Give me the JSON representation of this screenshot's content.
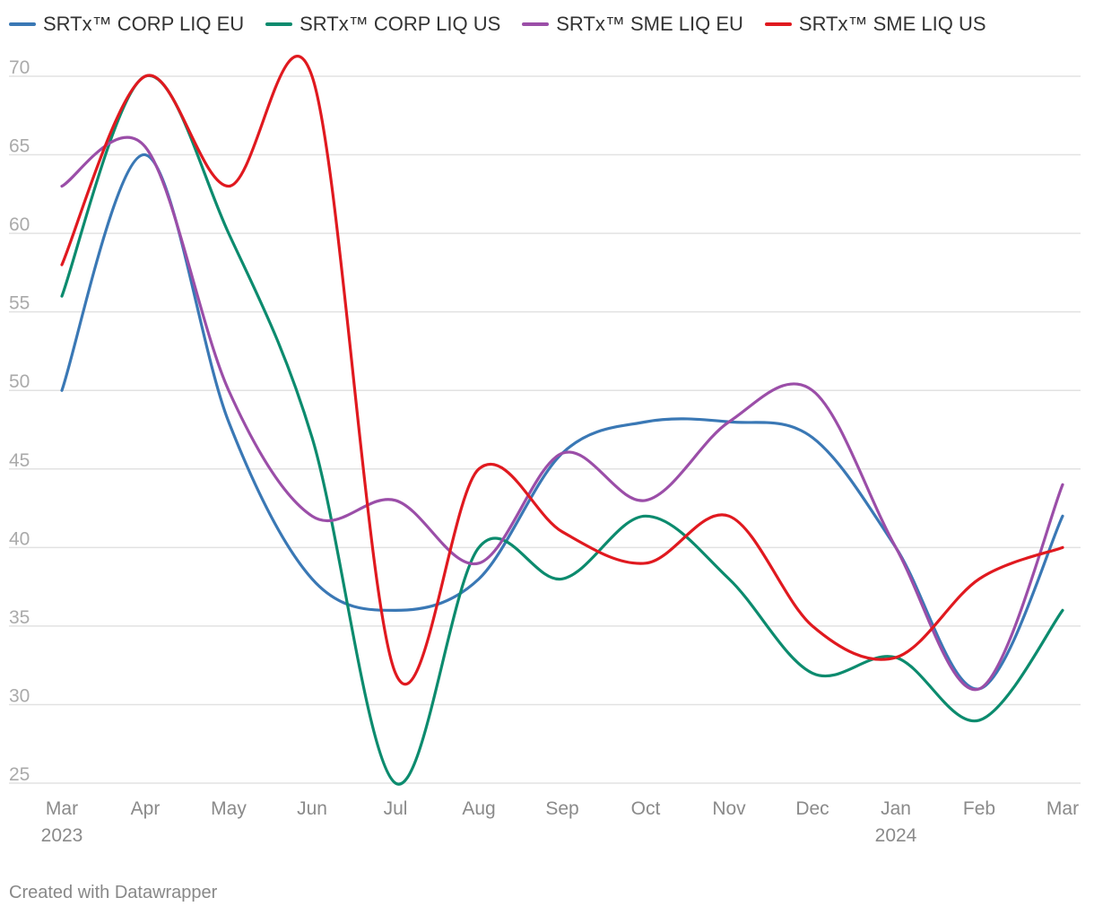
{
  "footer": {
    "credit": "Created with Datawrapper"
  },
  "chart_data": {
    "type": "line",
    "title": "",
    "xlabel": "",
    "ylabel": "",
    "ylim": [
      25,
      70
    ],
    "y_ticks": [
      25,
      30,
      35,
      40,
      45,
      50,
      55,
      60,
      65,
      70
    ],
    "grid": true,
    "legend_position": "top-left",
    "categories": [
      "Mar 2023",
      "Apr 2023",
      "May 2023",
      "Jun 2023",
      "Jul 2023",
      "Aug 2023",
      "Sep 2023",
      "Oct 2023",
      "Nov 2023",
      "Dec 2023",
      "Jan 2024",
      "Feb 2024",
      "Mar 2024"
    ],
    "x_tick_labels": [
      "Mar",
      "Apr",
      "May",
      "Jun",
      "Jul",
      "Aug",
      "Sep",
      "Oct",
      "Nov",
      "Dec",
      "Jan",
      "Feb",
      "Mar"
    ],
    "x_year_labels": [
      {
        "category_index": 0,
        "label": "2023"
      },
      {
        "category_index": 10,
        "label": "2024"
      }
    ],
    "series": [
      {
        "name": "SRTx™ CORP LIQ EU",
        "color": "#3a78b5",
        "values": [
          50,
          65,
          48,
          38,
          36,
          38,
          46,
          48,
          48,
          47,
          40,
          31,
          42
        ]
      },
      {
        "name": "SRTx™ CORP LIQ US",
        "color": "#0c8b6e",
        "values": [
          56,
          70,
          60,
          47,
          25,
          40,
          38,
          42,
          38,
          32,
          33,
          29,
          36
        ]
      },
      {
        "name": "SRTx™ SME LIQ EU",
        "color": "#9b4ea8",
        "values": [
          63,
          65.5,
          50,
          42,
          43,
          39,
          46,
          43,
          48,
          50,
          40,
          31,
          44
        ]
      },
      {
        "name": "SRTx™ SME LIQ US",
        "color": "#e0191f",
        "values": [
          58,
          70,
          63,
          70,
          32,
          45,
          41,
          39,
          42,
          35,
          33,
          38,
          40
        ]
      }
    ]
  }
}
